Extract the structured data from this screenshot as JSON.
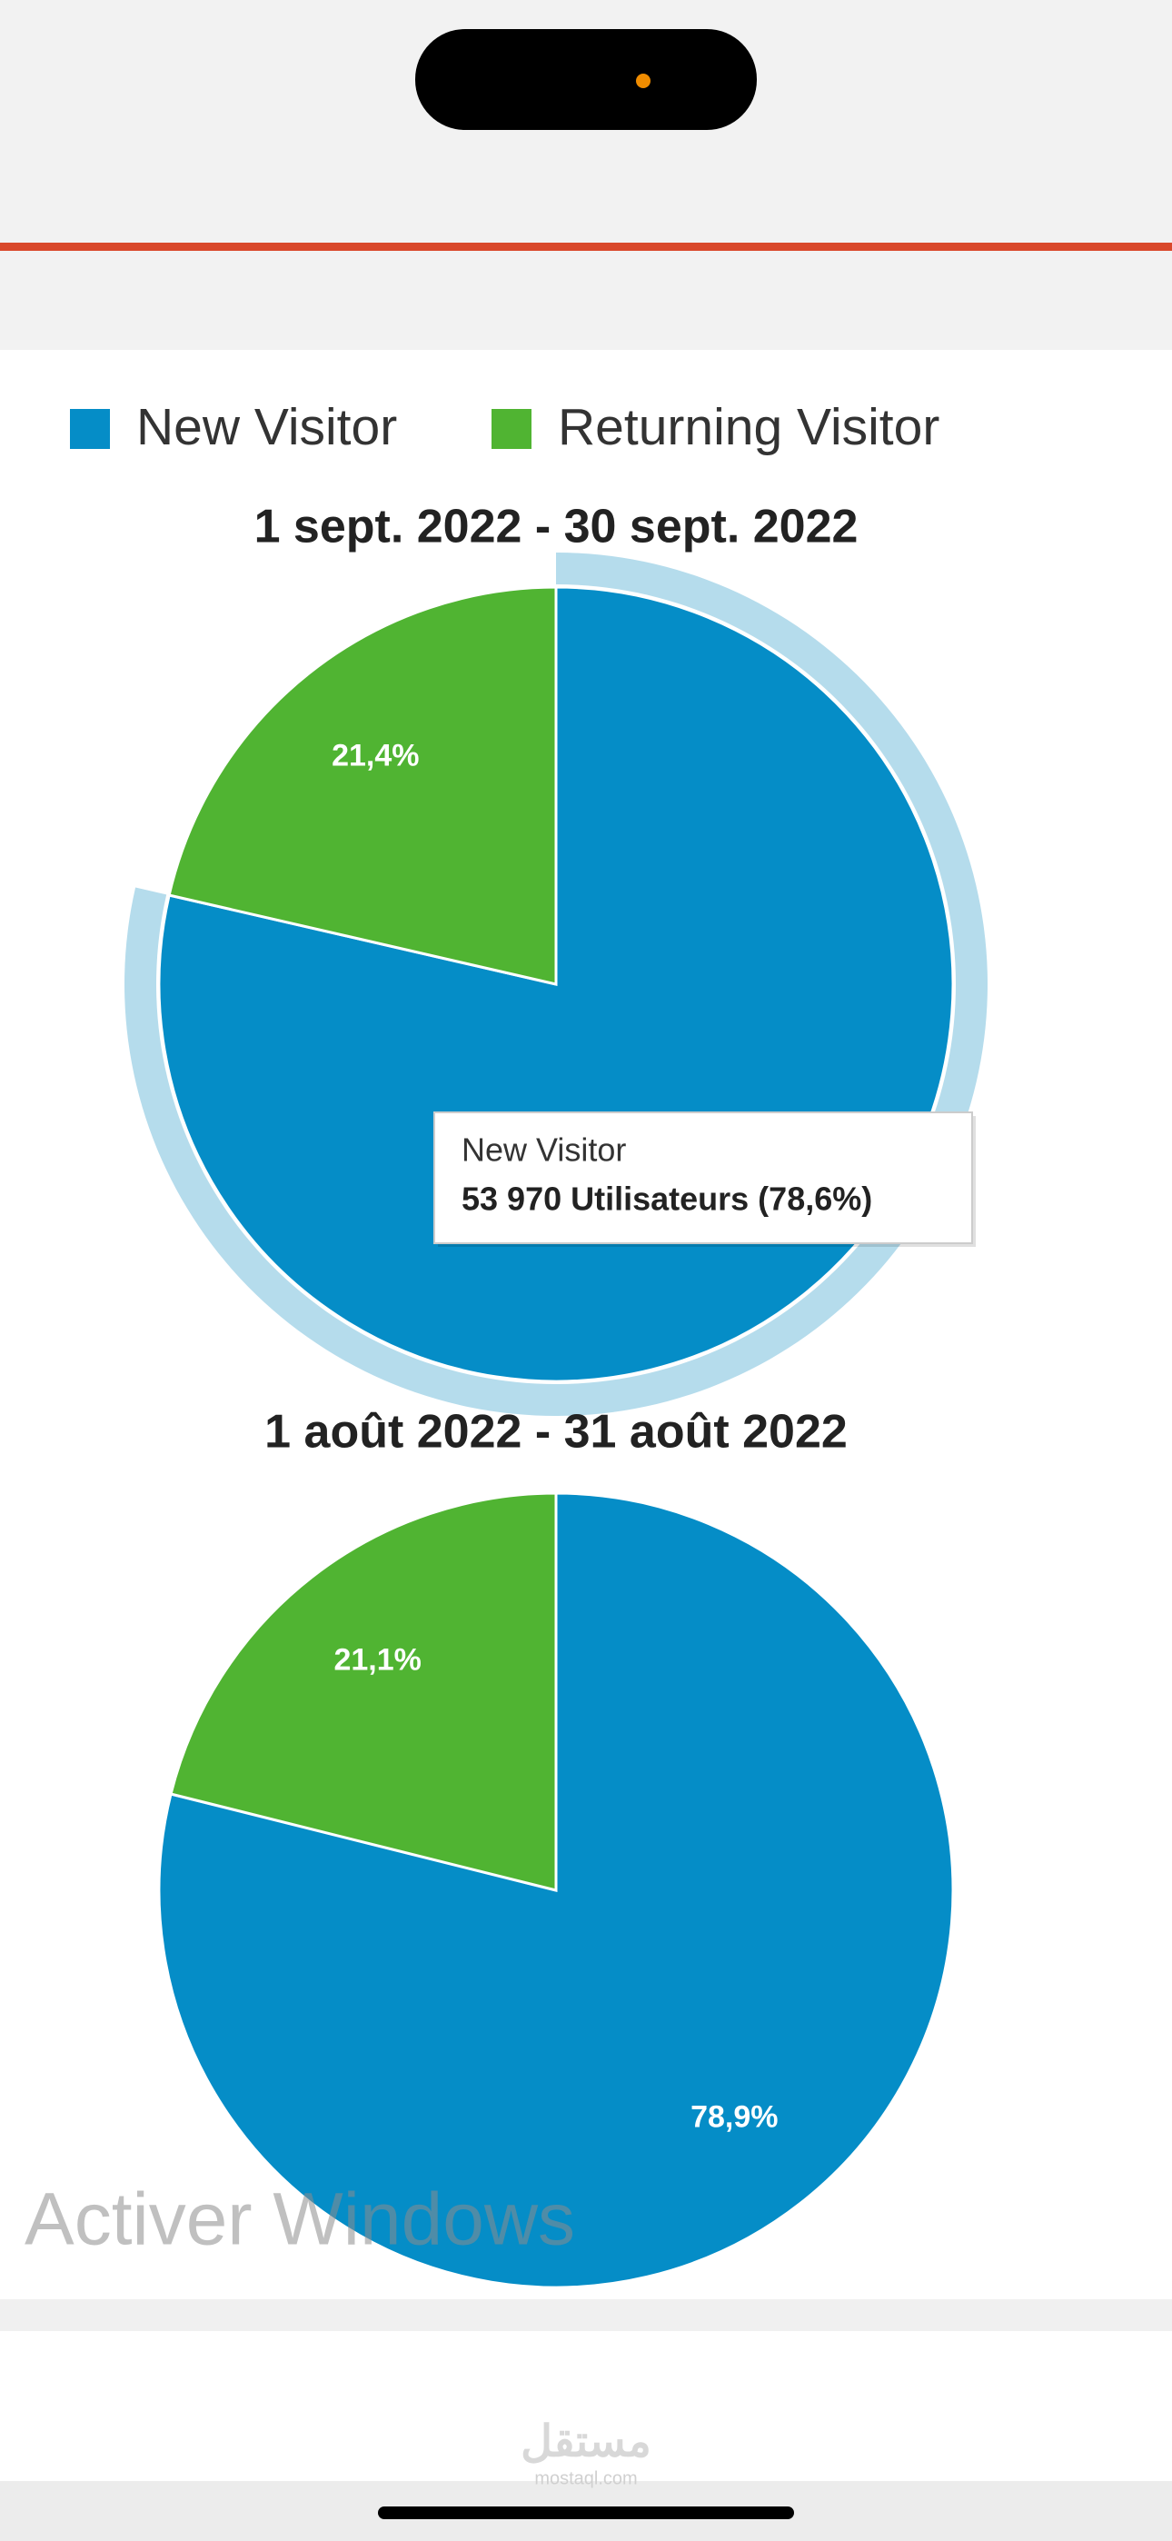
{
  "legend": {
    "categories": [
      "New Visitor",
      "Returning Visitor"
    ],
    "colors": [
      "#058dc7",
      "#50b432"
    ]
  },
  "chart_data": [
    {
      "type": "pie",
      "title": "1 sept. 2022 - 30 sept. 2022",
      "values": [
        78.6,
        21.4
      ],
      "value_labels": [
        null,
        "21,4%"
      ],
      "highlight_index": 0
    },
    {
      "type": "pie",
      "title": "1 août 2022 - 31 août 2022",
      "values": [
        78.9,
        21.1
      ],
      "value_labels": [
        "78,9%",
        "21,1%"
      ]
    }
  ],
  "tooltip": {
    "title": "New Visitor",
    "text": "53 970 Utilisateurs (78,6%)"
  },
  "watermark": "Activer Windows",
  "footer": {
    "logo": "مستقل",
    "site": "mostaql.com"
  }
}
